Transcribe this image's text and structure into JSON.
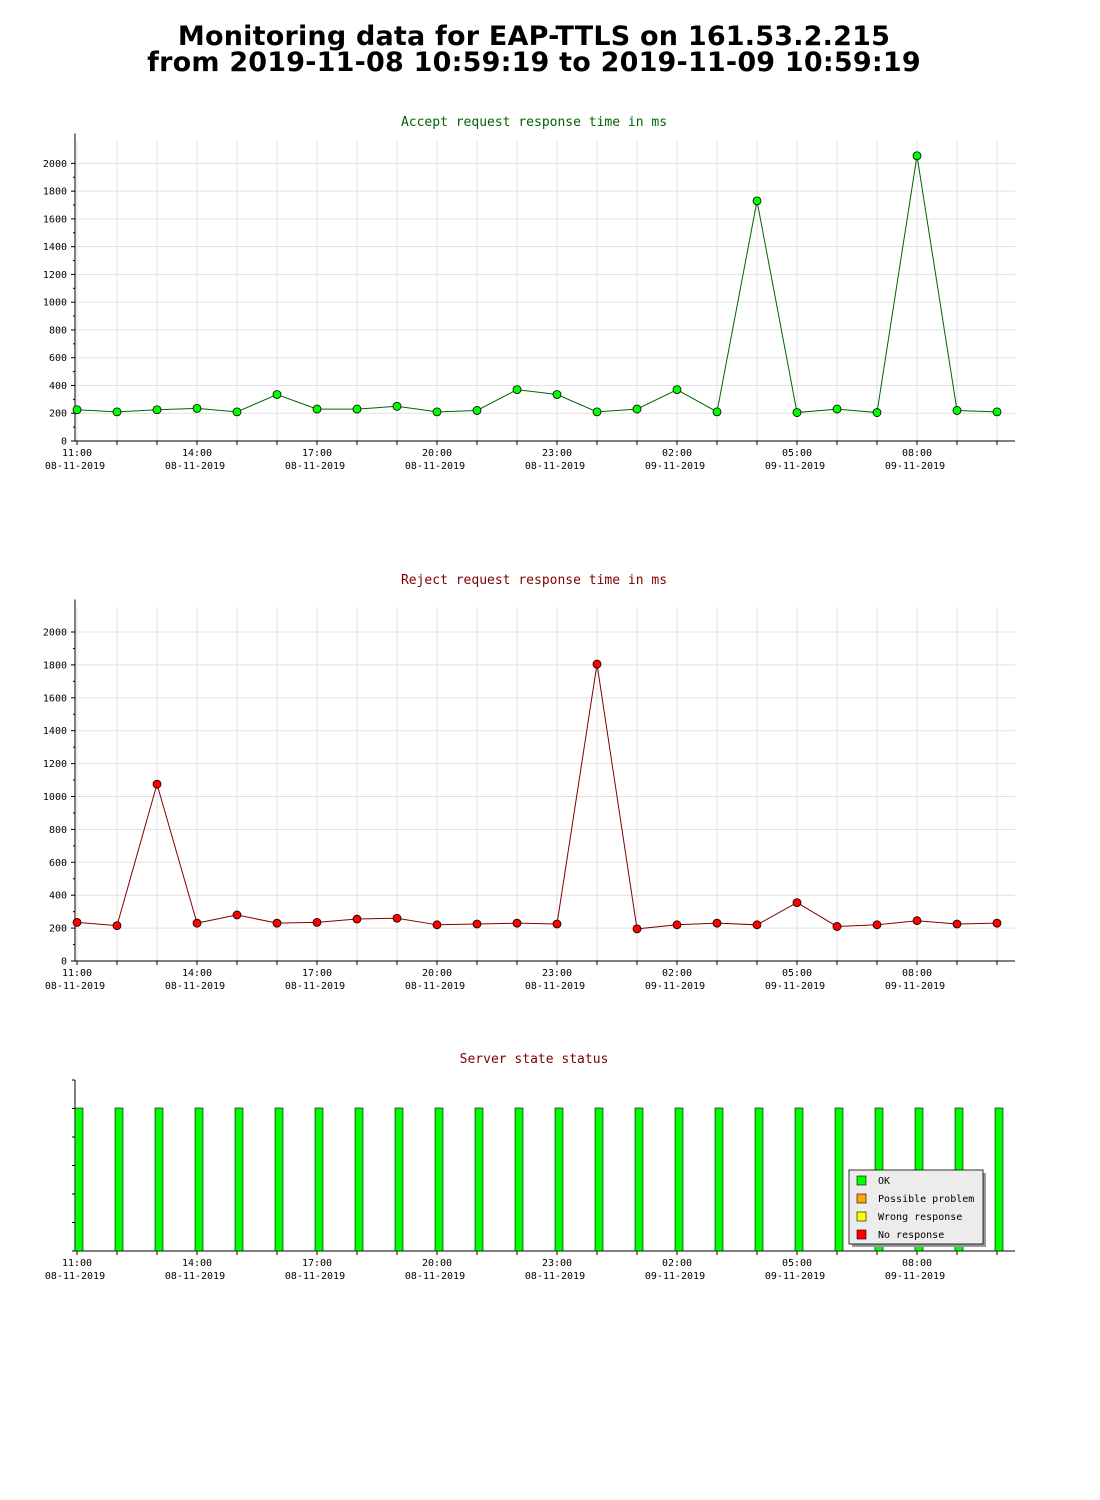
{
  "page": {
    "title_line1": "Monitoring data for EAP-TTLS on 161.53.2.215",
    "title_line2": "from 2019-11-08 10:59:19 to 2019-11-09 10:59:19"
  },
  "x_ticks": [
    {
      "label": "11:00",
      "date": "08-11-2019"
    },
    {
      "label": "14:00",
      "date": "08-11-2019"
    },
    {
      "label": "17:00",
      "date": "08-11-2019"
    },
    {
      "label": "20:00",
      "date": "08-11-2019"
    },
    {
      "label": "23:00",
      "date": "08-11-2019"
    },
    {
      "label": "02:00",
      "date": "09-11-2019"
    },
    {
      "label": "05:00",
      "date": "09-11-2019"
    },
    {
      "label": "08:00",
      "date": "09-11-2019"
    }
  ],
  "chart_data": [
    {
      "id": "accept",
      "type": "line",
      "title": "Accept request response time in ms",
      "title_color": "#006400",
      "line_color": "#006400",
      "marker_color": "#00ff00",
      "ylim": [
        0,
        2100
      ],
      "yticks": [
        0,
        200,
        400,
        600,
        800,
        1000,
        1200,
        1400,
        1600,
        1800,
        2000
      ],
      "x": [
        "2019-11-08 11:00",
        "2019-11-08 12:00",
        "2019-11-08 13:00",
        "2019-11-08 14:00",
        "2019-11-08 15:00",
        "2019-11-08 16:00",
        "2019-11-08 17:00",
        "2019-11-08 18:00",
        "2019-11-08 19:00",
        "2019-11-08 20:00",
        "2019-11-08 21:00",
        "2019-11-08 22:00",
        "2019-11-08 23:00",
        "2019-11-09 00:00",
        "2019-11-09 01:00",
        "2019-11-09 02:00",
        "2019-11-09 03:00",
        "2019-11-09 04:00",
        "2019-11-09 05:00",
        "2019-11-09 06:00",
        "2019-11-09 07:00",
        "2019-11-09 08:00",
        "2019-11-09 09:00",
        "2019-11-09 10:00"
      ],
      "values": [
        225,
        210,
        225,
        235,
        210,
        335,
        230,
        230,
        250,
        210,
        220,
        370,
        335,
        210,
        230,
        370,
        210,
        1730,
        205,
        230,
        205,
        2055,
        220,
        210
      ],
      "grid": true
    },
    {
      "id": "reject",
      "type": "line",
      "title": "Reject request response time in ms",
      "title_color": "#800000",
      "line_color": "#800000",
      "marker_color": "#ff0000",
      "ylim": [
        0,
        2100
      ],
      "yticks": [
        0,
        200,
        400,
        600,
        800,
        1000,
        1200,
        1400,
        1600,
        1800,
        2000
      ],
      "x": [
        "2019-11-08 11:00",
        "2019-11-08 12:00",
        "2019-11-08 13:00",
        "2019-11-08 14:00",
        "2019-11-08 15:00",
        "2019-11-08 16:00",
        "2019-11-08 17:00",
        "2019-11-08 18:00",
        "2019-11-08 19:00",
        "2019-11-08 20:00",
        "2019-11-08 21:00",
        "2019-11-08 22:00",
        "2019-11-08 23:00",
        "2019-11-09 00:00",
        "2019-11-09 01:00",
        "2019-11-09 02:00",
        "2019-11-09 03:00",
        "2019-11-09 04:00",
        "2019-11-09 05:00",
        "2019-11-09 06:00",
        "2019-11-09 07:00",
        "2019-11-09 08:00",
        "2019-11-09 09:00",
        "2019-11-09 10:00"
      ],
      "values": [
        235,
        215,
        1075,
        230,
        280,
        230,
        235,
        255,
        260,
        220,
        225,
        230,
        225,
        1805,
        195,
        220,
        230,
        220,
        355,
        210,
        220,
        245,
        225,
        230
      ],
      "grid": true
    },
    {
      "id": "status",
      "type": "bar",
      "title": "Server state status",
      "title_color": "#800000",
      "x": [
        "2019-11-08 11:00",
        "2019-11-08 12:00",
        "2019-11-08 13:00",
        "2019-11-08 14:00",
        "2019-11-08 15:00",
        "2019-11-08 16:00",
        "2019-11-08 17:00",
        "2019-11-08 18:00",
        "2019-11-08 19:00",
        "2019-11-08 20:00",
        "2019-11-08 21:00",
        "2019-11-08 22:00",
        "2019-11-08 23:00",
        "2019-11-09 00:00",
        "2019-11-09 01:00",
        "2019-11-09 02:00",
        "2019-11-09 03:00",
        "2019-11-09 04:00",
        "2019-11-09 05:00",
        "2019-11-09 06:00",
        "2019-11-09 07:00",
        "2019-11-09 08:00",
        "2019-11-09 09:00",
        "2019-11-09 10:00"
      ],
      "states": [
        "OK",
        "OK",
        "OK",
        "OK",
        "OK",
        "OK",
        "OK",
        "OK",
        "OK",
        "OK",
        "OK",
        "OK",
        "OK",
        "OK",
        "OK",
        "OK",
        "OK",
        "OK",
        "OK",
        "OK",
        "OK",
        "OK",
        "OK",
        "OK"
      ],
      "legend_position": "bottom-right",
      "legend": [
        {
          "label": "OK",
          "color": "#00ff00"
        },
        {
          "label": "Possible problem",
          "color": "#ffa500"
        },
        {
          "label": "Wrong response",
          "color": "#ffff00"
        },
        {
          "label": "No response",
          "color": "#ff0000"
        }
      ],
      "grid": false
    }
  ]
}
